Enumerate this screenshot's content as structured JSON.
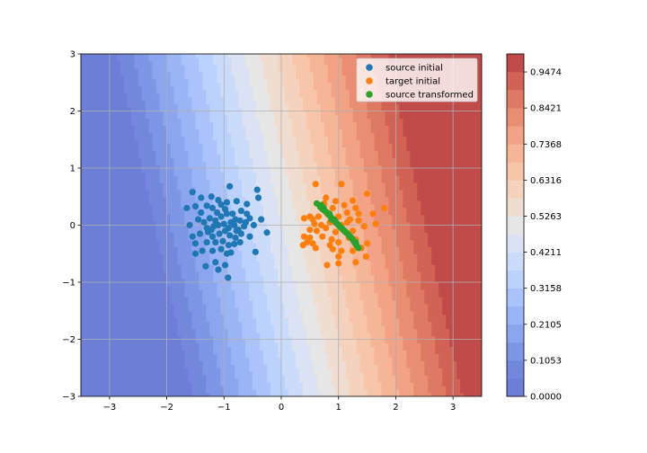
{
  "chart_data": {
    "type": "scatter",
    "xlim": [
      -3.5,
      3.5
    ],
    "ylim": [
      -3,
      3
    ],
    "x_ticks": [
      {
        "value": -3,
        "label": "−3"
      },
      {
        "value": -2,
        "label": "−2"
      },
      {
        "value": -1,
        "label": "−1"
      },
      {
        "value": 0,
        "label": "0"
      },
      {
        "value": 1,
        "label": "1"
      },
      {
        "value": 2,
        "label": "2"
      },
      {
        "value": 3,
        "label": "3"
      }
    ],
    "y_ticks": [
      {
        "value": -3,
        "label": "−3"
      },
      {
        "value": -2,
        "label": "−2"
      },
      {
        "value": -1,
        "label": "−1"
      },
      {
        "value": 0,
        "label": "0"
      },
      {
        "value": 1,
        "label": "1"
      },
      {
        "value": 2,
        "label": "2"
      },
      {
        "value": 3,
        "label": "3"
      }
    ],
    "grid": true,
    "legend_position": "top-right",
    "colorbar": {
      "levels": [
        0.0,
        0.0526,
        0.1053,
        0.1579,
        0.2105,
        0.2632,
        0.3158,
        0.3684,
        0.4211,
        0.4737,
        0.5263,
        0.5789,
        0.6316,
        0.6842,
        0.7368,
        0.7895,
        0.8421,
        0.8947,
        0.9474,
        1.0
      ],
      "colors": [
        "#6c7ed6",
        "#7388dd",
        "#7e96e6",
        "#8ba6ef",
        "#9ab5f6",
        "#aac4fb",
        "#bbd2fd",
        "#cbdcfb",
        "#dbe2f3",
        "#e6e6e6",
        "#f0ddd1",
        "#f5d2bd",
        "#f7c5a9",
        "#f6b597",
        "#f2a385",
        "#ea8e73",
        "#de7963",
        "#d16255",
        "#c04b4b"
      ],
      "tick_labels": [
        "0.0000",
        "0.1053",
        "0.2105",
        "0.3158",
        "0.4211",
        "0.5263",
        "0.6316",
        "0.7368",
        "0.8421",
        "0.9474"
      ]
    },
    "contour_field": {
      "description_levels_by_column": true
    },
    "series": [
      {
        "name": "source initial",
        "color": "#1f77b4",
        "points": [
          [
            -1.55,
            0.58
          ],
          [
            -1.4,
            0.48
          ],
          [
            -1.22,
            0.5
          ],
          [
            -1.1,
            0.44
          ],
          [
            -0.9,
            0.68
          ],
          [
            -0.78,
            0.42
          ],
          [
            -0.6,
            0.37
          ],
          [
            -0.42,
            0.62
          ],
          [
            -0.4,
            0.48
          ],
          [
            -1.65,
            0.3
          ],
          [
            -1.5,
            0.33
          ],
          [
            -1.3,
            0.34
          ],
          [
            -1.2,
            0.3
          ],
          [
            -1.05,
            0.36
          ],
          [
            -0.95,
            0.4
          ],
          [
            -0.85,
            0.2
          ],
          [
            -0.7,
            0.25
          ],
          [
            -0.55,
            0.12
          ],
          [
            -0.35,
            0.1
          ],
          [
            -1.45,
            0.1
          ],
          [
            -1.35,
            0.05
          ],
          [
            -1.25,
            0.12
          ],
          [
            -1.15,
            0.08
          ],
          [
            -1.05,
            0.15
          ],
          [
            -0.95,
            0.2
          ],
          [
            -0.88,
            0.05
          ],
          [
            -0.8,
            0.1
          ],
          [
            -0.72,
            0.08
          ],
          [
            -0.62,
            0.05
          ],
          [
            -1.6,
            0.0
          ],
          [
            -1.3,
            -0.05
          ],
          [
            -1.18,
            -0.02
          ],
          [
            -1.1,
            0.0
          ],
          [
            -1.0,
            0.02
          ],
          [
            -0.92,
            -0.05
          ],
          [
            -0.82,
            0.0
          ],
          [
            -0.75,
            -0.08
          ],
          [
            -0.65,
            -0.02
          ],
          [
            -0.25,
            -0.13
          ],
          [
            -1.55,
            -0.2
          ],
          [
            -1.42,
            -0.15
          ],
          [
            -1.28,
            -0.12
          ],
          [
            -1.2,
            -0.2
          ],
          [
            -1.08,
            -0.15
          ],
          [
            -0.98,
            -0.1
          ],
          [
            -0.9,
            -0.18
          ],
          [
            -0.8,
            -0.22
          ],
          [
            -0.7,
            -0.15
          ],
          [
            -0.55,
            -0.2
          ],
          [
            -1.5,
            -0.32
          ],
          [
            -1.3,
            -0.3
          ],
          [
            -1.15,
            -0.3
          ],
          [
            -1.02,
            -0.28
          ],
          [
            -0.92,
            -0.35
          ],
          [
            -0.82,
            -0.33
          ],
          [
            -0.72,
            -0.3
          ],
          [
            -1.5,
            -0.5
          ],
          [
            -1.38,
            -0.45
          ],
          [
            -1.2,
            -0.45
          ],
          [
            -1.05,
            -0.42
          ],
          [
            -0.95,
            -0.5
          ],
          [
            -0.88,
            -0.48
          ],
          [
            -0.45,
            -0.47
          ],
          [
            -1.32,
            -0.72
          ],
          [
            -1.15,
            -0.65
          ],
          [
            -1.1,
            -0.78
          ],
          [
            -0.98,
            -0.7
          ],
          [
            -0.93,
            -0.92
          ],
          [
            -1.12,
            0.22
          ],
          [
            -0.98,
            0.28
          ],
          [
            -0.6,
            0.2
          ],
          [
            -0.48,
            0.0
          ],
          [
            -1.4,
            0.22
          ],
          [
            -1.22,
            -0.08
          ],
          [
            -0.78,
            -0.1
          ]
        ]
      },
      {
        "name": "target initial",
        "color": "#ff7f0e",
        "points": [
          [
            0.6,
            0.72
          ],
          [
            1.05,
            0.72
          ],
          [
            0.78,
            0.48
          ],
          [
            1.25,
            0.43
          ],
          [
            1.5,
            0.55
          ],
          [
            1.8,
            0.3
          ],
          [
            0.7,
            0.3
          ],
          [
            0.9,
            0.3
          ],
          [
            1.1,
            0.35
          ],
          [
            1.3,
            0.3
          ],
          [
            0.55,
            0.1
          ],
          [
            0.65,
            0.15
          ],
          [
            0.8,
            0.2
          ],
          [
            1.0,
            0.15
          ],
          [
            1.2,
            0.1
          ],
          [
            1.35,
            0.2
          ],
          [
            1.6,
            0.2
          ],
          [
            0.4,
            0.12
          ],
          [
            0.5,
            0.15
          ],
          [
            0.58,
            0.02
          ],
          [
            0.7,
            0.0
          ],
          [
            0.85,
            0.05
          ],
          [
            1.05,
            0.0
          ],
          [
            1.15,
            0.05
          ],
          [
            1.45,
            -0.02
          ],
          [
            1.65,
            0.02
          ],
          [
            0.5,
            -0.08
          ],
          [
            0.62,
            -0.1
          ],
          [
            0.78,
            -0.05
          ],
          [
            0.95,
            -0.12
          ],
          [
            1.25,
            -0.1
          ],
          [
            0.4,
            -0.2
          ],
          [
            0.5,
            -0.22
          ],
          [
            0.55,
            -0.32
          ],
          [
            0.72,
            -0.2
          ],
          [
            0.88,
            -0.25
          ],
          [
            1.0,
            -0.3
          ],
          [
            1.18,
            -0.22
          ],
          [
            1.3,
            -0.25
          ],
          [
            1.5,
            -0.32
          ],
          [
            0.38,
            -0.35
          ],
          [
            0.45,
            -0.3
          ],
          [
            0.6,
            -0.4
          ],
          [
            0.85,
            -0.35
          ],
          [
            1.05,
            -0.45
          ],
          [
            1.25,
            -0.45
          ],
          [
            1.4,
            -0.4
          ],
          [
            1.48,
            -0.55
          ],
          [
            0.9,
            -0.42
          ],
          [
            1.0,
            -0.55
          ],
          [
            0.8,
            -0.7
          ],
          [
            1.0,
            -0.67
          ],
          [
            1.3,
            -0.65
          ],
          [
            1.35,
            0.08
          ],
          [
            0.95,
            0.42
          ],
          [
            0.75,
            0.38
          ],
          [
            1.15,
            0.22
          ]
        ]
      },
      {
        "name": "source transformed",
        "color": "#2ca02c",
        "points": [
          [
            0.62,
            0.38
          ],
          [
            0.68,
            0.32
          ],
          [
            0.72,
            0.28
          ],
          [
            0.76,
            0.25
          ],
          [
            0.8,
            0.22
          ],
          [
            0.83,
            0.18
          ],
          [
            0.86,
            0.15
          ],
          [
            0.88,
            0.12
          ],
          [
            0.9,
            0.1
          ],
          [
            0.93,
            0.08
          ],
          [
            0.95,
            0.05
          ],
          [
            0.98,
            0.02
          ],
          [
            1.0,
            0.0
          ],
          [
            1.03,
            -0.03
          ],
          [
            1.06,
            -0.06
          ],
          [
            1.08,
            -0.08
          ],
          [
            1.1,
            -0.1
          ],
          [
            1.13,
            -0.13
          ],
          [
            1.16,
            -0.15
          ],
          [
            1.18,
            -0.18
          ],
          [
            1.2,
            -0.2
          ],
          [
            1.23,
            -0.23
          ],
          [
            1.26,
            -0.27
          ],
          [
            1.28,
            -0.3
          ],
          [
            1.3,
            -0.33
          ],
          [
            1.32,
            -0.36
          ],
          [
            1.35,
            -0.4
          ],
          [
            0.74,
            0.3
          ],
          [
            0.84,
            0.2
          ],
          [
            0.92,
            0.1
          ],
          [
            1.02,
            -0.02
          ],
          [
            1.12,
            -0.12
          ],
          [
            1.22,
            -0.22
          ],
          [
            1.3,
            -0.3
          ],
          [
            0.7,
            0.35
          ],
          [
            0.88,
            0.1
          ]
        ]
      }
    ]
  }
}
